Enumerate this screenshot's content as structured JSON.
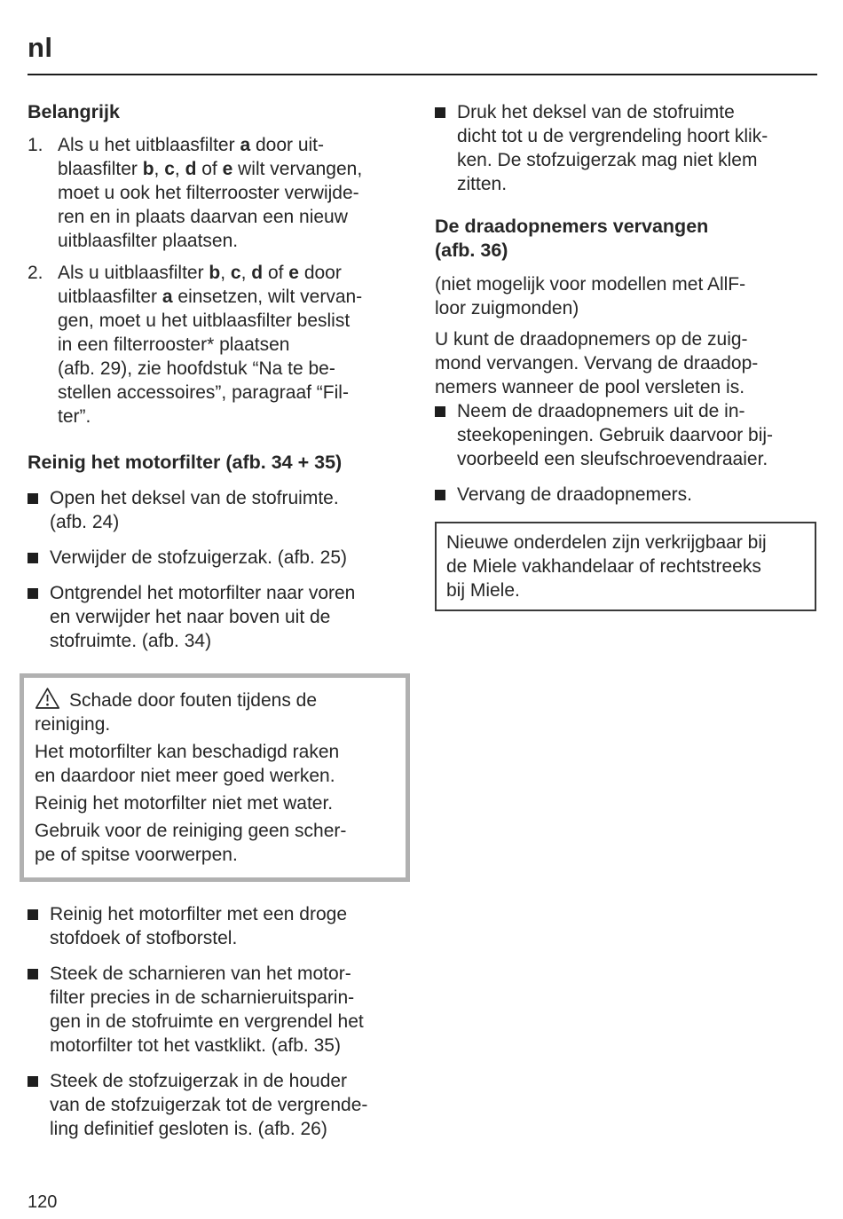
{
  "page": {
    "lang_tag": "nl",
    "page_number": "120",
    "text_color": "#262626",
    "warning_border_color": "#b1b1b1",
    "rule_color": "#1c1c1c"
  },
  "left_column": {
    "heading_important": "Belangrijk",
    "numbered_items": [
      {
        "number": "1.",
        "lines": [
          [
            {
              "t": "Als u het uitblaasfilter "
            },
            {
              "t": "a",
              "b": true
            },
            {
              "t": " door uit-"
            }
          ],
          [
            {
              "t": "blaasfilter "
            },
            {
              "t": "b",
              "b": true
            },
            {
              "t": ", "
            },
            {
              "t": "c",
              "b": true
            },
            {
              "t": ", "
            },
            {
              "t": "d",
              "b": true
            },
            {
              "t": " of "
            },
            {
              "t": "e",
              "b": true
            },
            {
              "t": " wilt vervangen,"
            }
          ],
          "moet u ook het filterrooster verwijde-",
          "ren en in plaats daarvan een nieuw",
          "uitblaasfilter plaatsen."
        ]
      },
      {
        "number": "2.",
        "lines": [
          [
            {
              "t": "Als u uitblaasfilter "
            },
            {
              "t": "b",
              "b": true
            },
            {
              "t": ", "
            },
            {
              "t": "c",
              "b": true
            },
            {
              "t": ", "
            },
            {
              "t": "d",
              "b": true
            },
            {
              "t": " of "
            },
            {
              "t": "e",
              "b": true
            },
            {
              "t": " door"
            }
          ],
          [
            {
              "t": "uitblaasfilter "
            },
            {
              "t": "a",
              "b": true
            },
            {
              "t": " einsetzen, wilt vervan-"
            }
          ],
          "gen, moet u het uitblaasfilter beslist",
          "in een filterrooster* plaatsen",
          "(afb. 29), zie hoofdstuk “Na te be-",
          "stellen accessoires”, paragraaf “Fil-",
          "ter”."
        ]
      }
    ],
    "section_heading": "Reinig het motorfilter (afb. 34 + 35)",
    "bullets_before_warning": [
      {
        "lines": [
          "Open het deksel van de stofruimte.",
          "(afb. 24)"
        ]
      },
      {
        "lines": [
          "Verwijder de stofzuigerzak. (afb. 25)"
        ]
      },
      {
        "lines": [
          "Ontgrendel het motorfilter naar voren",
          "en verwijder het naar boven uit de",
          "stofruimte. (afb. 34)"
        ]
      }
    ],
    "warning_box": {
      "icon_name": "warning-triangle-icon",
      "paragraphs": [
        {
          "lines": [
            "Schade door fouten tijdens de",
            "reiniging."
          ]
        },
        {
          "lines": [
            "Het motorfilter kan beschadigd raken",
            "en daardoor niet meer goed werken."
          ]
        },
        {
          "lines": [
            "Reinig het motorfilter niet met water."
          ]
        },
        {
          "lines": [
            "Gebruik voor de reiniging geen scher-",
            "pe of spitse voorwerpen."
          ]
        }
      ]
    },
    "bullets_after_warning": [
      {
        "lines": [
          "Reinig het motorfilter met een droge",
          "stofdoek of stofborstel."
        ]
      },
      {
        "lines": [
          "Steek de scharnieren van het motor-",
          "filter precies in de scharnieruitsparin-",
          "gen in de stofruimte en vergrendel het",
          "motorfilter tot het vastklikt. (afb. 35)"
        ]
      },
      {
        "lines": [
          "Steek de stofzuigerzak in de houder",
          "van de stofzuigerzak tot de vergrende-",
          "ling definitief gesloten is. (afb. 26)"
        ]
      }
    ]
  },
  "right_column": {
    "bullet_top": {
      "lines": [
        "Druk het deksel van de stofruimte",
        "dicht tot u de vergrendeling hoort klik-",
        "ken. De stofzuigerzak mag niet klem",
        "zitten."
      ]
    },
    "section_heading_lines": [
      "De draadopnemers vervangen",
      "(afb. 36)"
    ],
    "paragraph_models_lines": [
      "(niet mogelijk voor modellen met AllF-",
      "loor zuigmonden)"
    ],
    "paragraph_info_lines": [
      "U kunt de draadopnemers op de zuig-",
      "mond vervangen. Vervang de draadop-",
      "nemers wanneer de pool versleten is."
    ],
    "bullets": [
      {
        "lines": [
          "Neem de draadopnemers uit de in-",
          "steekopeningen. Gebruik daarvoor bij-",
          "voorbeeld een sleufschroevendraaier."
        ]
      },
      {
        "lines": [
          "Vervang de draadopnemers."
        ]
      }
    ],
    "note_box_lines": [
      "Nieuwe onderdelen zijn verkrijgbaar bij",
      "de Miele vakhandelaar of rechtstreeks",
      "bij Miele."
    ]
  }
}
